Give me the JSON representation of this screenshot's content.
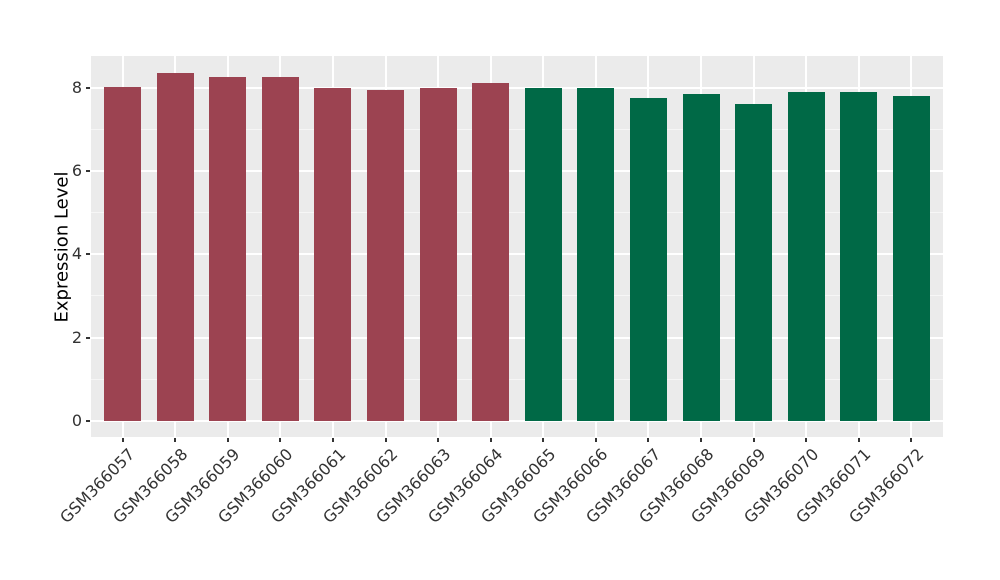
{
  "figure": {
    "background_color": "#FFFFFF",
    "panel_background_color": "#EBEBEB",
    "grid_major_color": "#FFFFFF",
    "grid_minor_color": "rgba(255,255,255,0.55)",
    "axis_text_color": "#333333",
    "axis_title_color": "#000000"
  },
  "chart_data": {
    "type": "bar",
    "title": "",
    "xlabel": "",
    "ylabel": "Expression Level",
    "categories": [
      "GSM366057",
      "GSM366058",
      "GSM366059",
      "GSM366060",
      "GSM366061",
      "GSM366062",
      "GSM366063",
      "GSM366064",
      "GSM366065",
      "GSM366066",
      "GSM366067",
      "GSM366068",
      "GSM366069",
      "GSM366070",
      "GSM366071",
      "GSM366072"
    ],
    "values": [
      8.02,
      8.35,
      8.27,
      8.26,
      7.99,
      7.96,
      8.01,
      8.12,
      7.99,
      8.0,
      7.77,
      7.86,
      7.62,
      7.91,
      7.91,
      7.8
    ],
    "bar_colors": [
      "#9C4351",
      "#9C4351",
      "#9C4351",
      "#9C4351",
      "#9C4351",
      "#9C4351",
      "#9C4351",
      "#9C4351",
      "#006946",
      "#006946",
      "#006946",
      "#006946",
      "#006946",
      "#006946",
      "#006946",
      "#006946"
    ],
    "yticks": [
      0,
      2,
      4,
      6,
      8
    ],
    "yminor": [
      1,
      3,
      5,
      7
    ],
    "ylim": [
      -0.39,
      8.77
    ],
    "grid": "horizontal major+minor, vertical major at each category",
    "legend": "none",
    "x_label_rotation_deg": 45
  }
}
